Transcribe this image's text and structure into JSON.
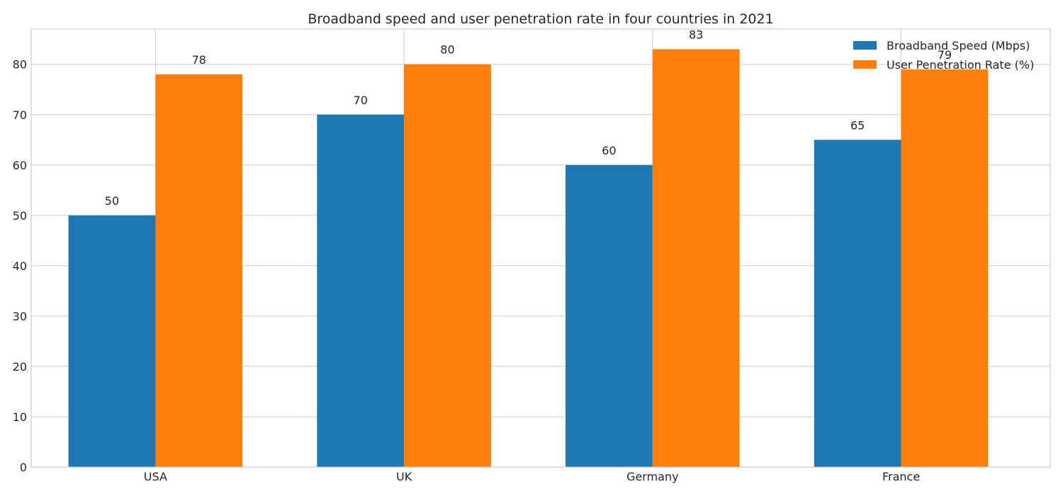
{
  "chart_data": {
    "type": "bar",
    "title": "Broadband speed and user penetration rate in four countries in 2021",
    "xlabel": "",
    "ylabel": "",
    "categories": [
      "USA",
      "UK",
      "Germany",
      "France"
    ],
    "series": [
      {
        "name": "Broadband Speed (Mbps)",
        "values": [
          50,
          70,
          60,
          65
        ],
        "color": "#1f77b4"
      },
      {
        "name": "User Penetration Rate (%)",
        "values": [
          78,
          80,
          83,
          79
        ],
        "color": "#ff7f0e"
      }
    ],
    "ylim": [
      0,
      87
    ],
    "yticks": [
      0,
      10,
      20,
      30,
      40,
      50,
      60,
      70,
      80
    ],
    "grid": true,
    "legend_position": "top-right",
    "data_labels": true
  }
}
